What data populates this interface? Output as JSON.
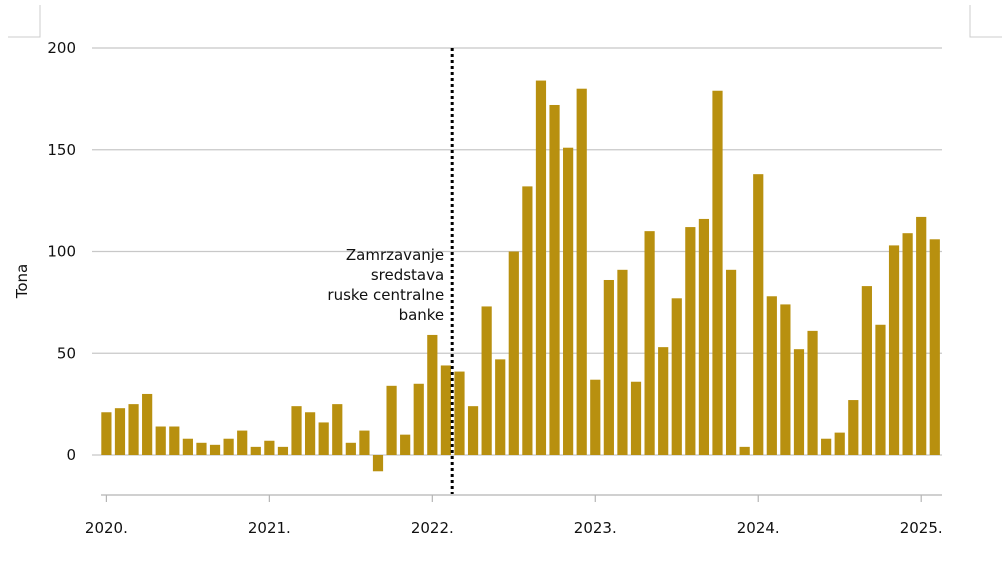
{
  "chart_data": {
    "type": "bar",
    "ylabel": "Tona",
    "ylim": [
      -20,
      200
    ],
    "yticks": [
      0,
      50,
      100,
      150,
      200
    ],
    "grid": true,
    "color": "#b8900f",
    "x_start": "2020-01",
    "xtick_labels": [
      "2020.",
      "2021.",
      "2022.",
      "2023.",
      "2024.",
      "2025."
    ],
    "annotation": {
      "lines": [
        "Zamrzavanje",
        "sredstava",
        "ruske centralne",
        "banke"
      ],
      "date": "2022-03"
    },
    "values": [
      21,
      23,
      25,
      30,
      14,
      14,
      8,
      6,
      5,
      8,
      12,
      4,
      7,
      4,
      24,
      21,
      16,
      25,
      6,
      12,
      -8,
      34,
      10,
      35,
      59,
      44,
      41,
      24,
      73,
      47,
      100,
      132,
      184,
      172,
      151,
      180,
      37,
      86,
      91,
      36,
      110,
      53,
      77,
      112,
      116,
      179,
      91,
      4,
      138,
      78,
      74,
      52,
      61,
      8,
      11,
      27,
      83,
      64,
      103,
      109,
      117,
      106
    ]
  }
}
